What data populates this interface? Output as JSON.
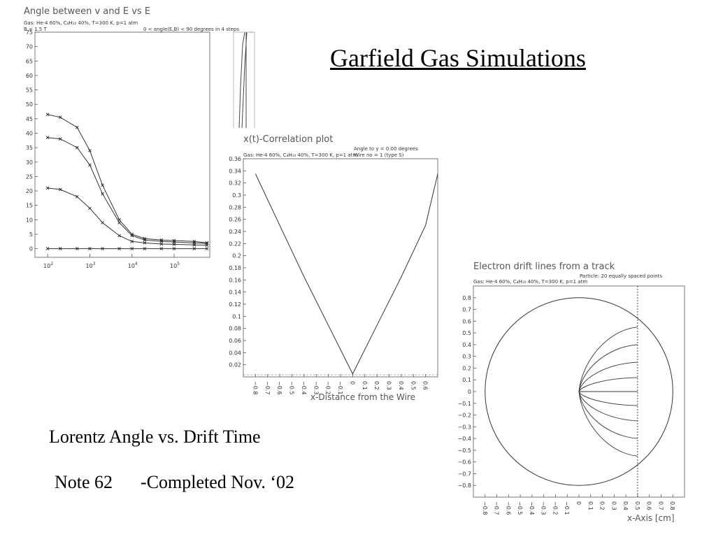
{
  "slide": {
    "title": "Garfield Gas Simulations",
    "caption": "Lorentz Angle vs. Drift Time",
    "note_label": "Note 62",
    "note_status": "-Completed Nov. ‘02"
  },
  "chart_data": [
    {
      "type": "line",
      "title": "Angle between v and E vs E",
      "subtitle": "Gas: He-4 60%, C₄H₁₀ 40%, T=300 K, p=1 atm",
      "meta": [
        "B = 1.5 T",
        "0 < angle(E,B) < 90 degrees in 4 steps"
      ],
      "xscale": "log",
      "xlim": [
        50,
        700000
      ],
      "ylim": [
        -3,
        75
      ],
      "yticks": [
        0,
        5,
        10,
        15,
        20,
        25,
        30,
        35,
        40,
        45,
        50,
        55,
        60,
        65,
        70,
        75
      ],
      "xtick_labels": [
        {
          "x": 100,
          "label": "10",
          "sup": "2"
        },
        {
          "x": 1000,
          "label": "10",
          "sup": "3"
        },
        {
          "x": 10000,
          "label": "10",
          "sup": "4"
        },
        {
          "x": 100000,
          "label": "10",
          "sup": "5"
        }
      ],
      "series": [
        {
          "x": [
            100,
            200,
            500,
            1000,
            2000,
            5000,
            10000,
            20000,
            50000,
            100000,
            300000,
            600000
          ],
          "y": [
            46.5,
            45.5,
            42,
            34,
            22,
            10,
            5,
            3.5,
            3,
            2.8,
            2.5,
            2
          ]
        },
        {
          "x": [
            100,
            200,
            500,
            1000,
            2000,
            5000,
            10000,
            20000,
            50000,
            100000,
            300000,
            600000
          ],
          "y": [
            38.5,
            38,
            35,
            29,
            19,
            9,
            4.5,
            3,
            2.5,
            2.3,
            2,
            1.8
          ]
        },
        {
          "x": [
            100,
            200,
            500,
            1000,
            2000,
            5000,
            10000,
            20000,
            50000,
            100000,
            300000,
            600000
          ],
          "y": [
            21,
            20.5,
            18,
            14,
            9,
            4.5,
            2.5,
            2,
            1.6,
            1.5,
            1.3,
            1.2
          ]
        },
        {
          "x": [
            100,
            200,
            500,
            1000,
            2000,
            5000,
            10000,
            20000,
            50000,
            100000,
            300000,
            600000
          ],
          "y": [
            0,
            0,
            0,
            0,
            0,
            0,
            0,
            0,
            0,
            0,
            0,
            0
          ]
        }
      ]
    },
    {
      "type": "line",
      "title": "x(t)-Correlation plot",
      "subtitle": "Gas: He-4 60%, C₄H₁₀ 40%, T=300 K, p=1 atm",
      "meta": [
        "Angle to y = 0.00 degrees",
        "Wire no = 1 (type S)"
      ],
      "xlabel": "x-Distance from the Wire",
      "xlim": [
        -0.9,
        0.7
      ],
      "ylim": [
        0,
        0.36
      ],
      "yticks": [
        0.02,
        0.04,
        0.06,
        0.08,
        0.1,
        0.12,
        0.14,
        0.16,
        0.18,
        0.2,
        0.22,
        0.24,
        0.26,
        0.28,
        0.3,
        0.32,
        0.34,
        0.36
      ],
      "xticks": [
        -0.8,
        -0.7,
        -0.6,
        -0.5,
        -0.4,
        -0.3,
        -0.2,
        -0.1,
        0,
        0.1,
        0.2,
        0.3,
        0.4,
        0.5,
        0.6
      ],
      "series": [
        {
          "x": [
            -0.8,
            -0.6,
            -0.4,
            -0.2,
            0,
            0.2,
            0.4,
            0.6,
            0.7
          ],
          "y": [
            0.335,
            0.25,
            0.165,
            0.085,
            0.005,
            0.085,
            0.165,
            0.25,
            0.335
          ]
        }
      ]
    },
    {
      "type": "line",
      "title": "Electron drift lines from a track",
      "subtitle": "Gas: He-4 60%, C₄H₁₀ 40%, T=300 K, p=1 atm",
      "meta": [
        "Particle: 20 equally spaced points"
      ],
      "xlabel": "x-Axis [cm]",
      "xlim": [
        -0.9,
        0.9
      ],
      "ylim": [
        -0.9,
        0.9
      ],
      "yticks": [
        -0.8,
        -0.7,
        -0.6,
        -0.5,
        -0.4,
        -0.3,
        -0.2,
        -0.1,
        0,
        0.1,
        0.2,
        0.3,
        0.4,
        0.5,
        0.6,
        0.7,
        0.8
      ],
      "xticks": [
        -0.8,
        -0.7,
        -0.6,
        -0.5,
        -0.4,
        -0.3,
        -0.2,
        -0.1,
        0,
        0.1,
        0.2,
        0.3,
        0.4,
        0.5,
        0.6,
        0.7,
        0.8
      ],
      "circle_radius": 0.8,
      "track_x": 0.5,
      "drift_line_start_y": [
        0.55,
        0.4,
        0.25,
        0.12,
        0.0,
        -0.12,
        -0.25,
        -0.4,
        -0.55
      ]
    }
  ]
}
